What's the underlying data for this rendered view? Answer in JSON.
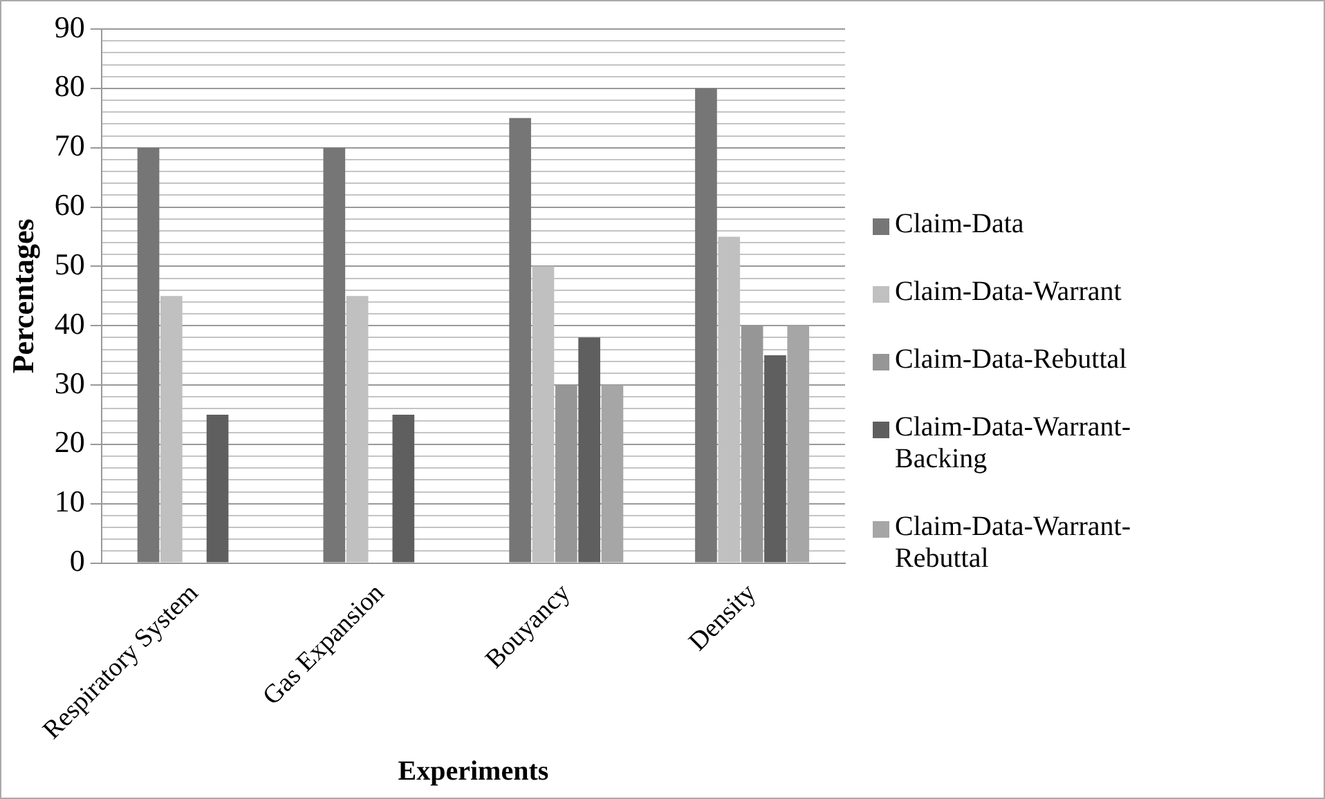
{
  "chart_data": {
    "type": "bar",
    "xlabel": "Experiments",
    "ylabel": "Percentages",
    "categories": [
      "Respiratory System",
      "Gas Expansion",
      "Bouyancy",
      "Density"
    ],
    "series": [
      {
        "name": "Claim-Data",
        "color": "#767676",
        "values": [
          70,
          70,
          75,
          80
        ]
      },
      {
        "name": "Claim-Data-Warrant",
        "color": "#c0c0c0",
        "values": [
          45,
          45,
          50,
          55
        ]
      },
      {
        "name": "Claim-Data-Rebuttal",
        "color": "#969696",
        "values": [
          null,
          null,
          30,
          40
        ]
      },
      {
        "name": "Claim-Data-Warrant-Backing",
        "color": "#5f5f5f",
        "values": [
          25,
          25,
          38,
          35
        ]
      },
      {
        "name": "Claim-Data-Warrant-Rebuttal",
        "color": "#a6a6a6",
        "values": [
          null,
          null,
          30,
          40
        ]
      }
    ],
    "ylim": [
      0,
      90
    ],
    "yticks": [
      0,
      {
        "value": 2,
        "label": null
      },
      {
        "value": 4,
        "label": null
      },
      {
        "value": 6,
        "label": null
      },
      {
        "value": 8,
        "label": null
      },
      10,
      {
        "value": 12,
        "label": null
      },
      {
        "value": 14,
        "label": null
      },
      {
        "value": 16,
        "label": null
      },
      {
        "value": 18,
        "label": null
      },
      20,
      {
        "value": 22,
        "label": null
      },
      {
        "value": 24,
        "label": null
      },
      {
        "value": 26,
        "label": null
      },
      {
        "value": 28,
        "label": null
      },
      30,
      {
        "value": 32,
        "label": null
      },
      {
        "value": 34,
        "label": null
      },
      {
        "value": 36,
        "label": null
      },
      {
        "value": 38,
        "label": null
      },
      40,
      {
        "value": 42,
        "label": null
      },
      {
        "value": 44,
        "label": null
      },
      {
        "value": 46,
        "label": null
      },
      {
        "value": 48,
        "label": null
      },
      50,
      {
        "value": 52,
        "label": null
      },
      {
        "value": 54,
        "label": null
      },
      {
        "value": 56,
        "label": null
      },
      {
        "value": 58,
        "label": null
      },
      60,
      {
        "value": 62,
        "label": null
      },
      {
        "value": 64,
        "label": null
      },
      {
        "value": 66,
        "label": null
      },
      {
        "value": 68,
        "label": null
      },
      70,
      {
        "value": 72,
        "label": null
      },
      {
        "value": 74,
        "label": null
      },
      {
        "value": 76,
        "label": null
      },
      {
        "value": 78,
        "label": null
      },
      80,
      {
        "value": 82,
        "label": null
      },
      {
        "value": 84,
        "label": null
      },
      {
        "value": 86,
        "label": null
      },
      {
        "value": 88,
        "label": null
      },
      90
    ],
    "grid": "y",
    "legend": "right"
  }
}
